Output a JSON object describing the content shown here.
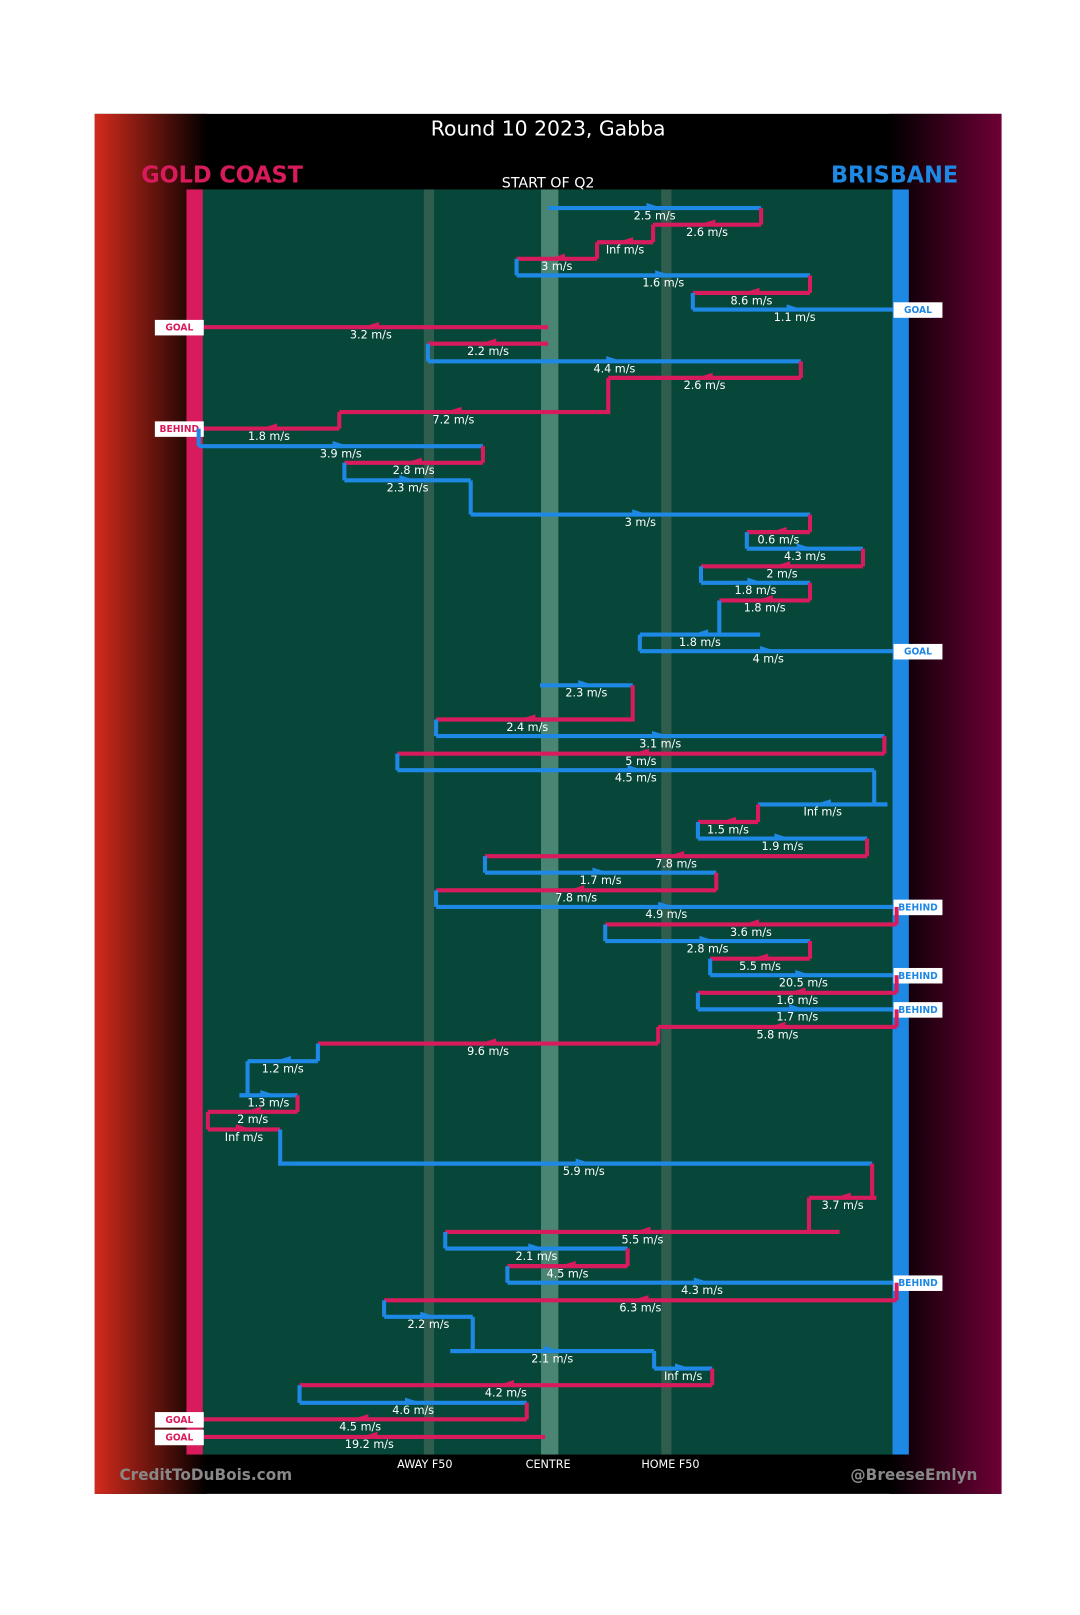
{
  "header": {
    "title": "Round 10 2023, Gabba",
    "subtitle": "START OF Q2",
    "left_team": "GOLD COAST",
    "right_team": "BRISBANE"
  },
  "footer": {
    "left": "CreditToDuBois.com",
    "right": "@BreeseEmlyn",
    "axis": [
      "AWAY F50",
      "CENTRE",
      "HOME F50"
    ]
  },
  "rows": [
    {
      "speed": "2.5 m/s",
      "team": "BRISBANE"
    },
    {
      "speed": "2.6 m/s",
      "team": "GOLD COAST"
    },
    {
      "speed": "Inf m/s",
      "team": "GOLD COAST"
    },
    {
      "speed": "3 m/s",
      "team": "GOLD COAST"
    },
    {
      "speed": "1.6 m/s",
      "team": "BRISBANE"
    },
    {
      "speed": "8.6 m/s",
      "team": "GOLD COAST"
    },
    {
      "speed": "1.1 m/s",
      "team": "BRISBANE",
      "outcome": "GOAL"
    },
    {
      "speed": "3.2 m/s",
      "team": "GOLD COAST",
      "outcome": "GOAL"
    },
    {
      "speed": "2.2 m/s",
      "team": "GOLD COAST"
    },
    {
      "speed": "4.4 m/s",
      "team": "BRISBANE"
    },
    {
      "speed": "2.6 m/s",
      "team": "GOLD COAST"
    },
    {
      "speed": "7.2 m/s",
      "team": "GOLD COAST"
    },
    {
      "speed": "1.8 m/s",
      "team": "GOLD COAST",
      "outcome": "BEHIND"
    },
    {
      "speed": "3.9 m/s",
      "team": "BRISBANE"
    },
    {
      "speed": "2.8 m/s",
      "team": "GOLD COAST"
    },
    {
      "speed": "2.3 m/s",
      "team": "BRISBANE"
    },
    {
      "speed": "3 m/s",
      "team": "BRISBANE"
    },
    {
      "speed": "0.6 m/s",
      "team": "GOLD COAST"
    },
    {
      "speed": "4.3 m/s",
      "team": "BRISBANE"
    },
    {
      "speed": "2 m/s",
      "team": "GOLD COAST"
    },
    {
      "speed": "1.8 m/s",
      "team": "BRISBANE"
    },
    {
      "speed": "1.8 m/s",
      "team": "GOLD COAST"
    },
    {
      "speed": "1.8 m/s",
      "team": "BRISBANE"
    },
    {
      "speed": "4 m/s",
      "team": "BRISBANE",
      "outcome": "GOAL"
    },
    {
      "speed": "2.3 m/s",
      "team": "BRISBANE"
    },
    {
      "speed": "2.4 m/s",
      "team": "GOLD COAST"
    },
    {
      "speed": "3.1 m/s",
      "team": "BRISBANE"
    },
    {
      "speed": "5 m/s",
      "team": "GOLD COAST"
    },
    {
      "speed": "4.5 m/s",
      "team": "BRISBANE"
    },
    {
      "speed": "Inf m/s",
      "team": "BRISBANE"
    },
    {
      "speed": "1.5 m/s",
      "team": "GOLD COAST"
    },
    {
      "speed": "1.9 m/s",
      "team": "BRISBANE"
    },
    {
      "speed": "7.8 m/s",
      "team": "GOLD COAST"
    },
    {
      "speed": "1.7 m/s",
      "team": "BRISBANE"
    },
    {
      "speed": "7.8 m/s",
      "team": "GOLD COAST"
    },
    {
      "speed": "4.9 m/s",
      "team": "BRISBANE",
      "outcome": "BEHIND"
    },
    {
      "speed": "3.6 m/s",
      "team": "GOLD COAST"
    },
    {
      "speed": "2.8 m/s",
      "team": "BRISBANE"
    },
    {
      "speed": "5.5 m/s",
      "team": "GOLD COAST"
    },
    {
      "speed": "20.5 m/s",
      "team": "BRISBANE",
      "outcome": "BEHIND"
    },
    {
      "speed": "1.6 m/s",
      "team": "GOLD COAST"
    },
    {
      "speed": "1.7 m/s",
      "team": "BRISBANE",
      "outcome": "BEHIND"
    },
    {
      "speed": "5.8 m/s",
      "team": "GOLD COAST"
    },
    {
      "speed": "9.6 m/s",
      "team": "GOLD COAST"
    },
    {
      "speed": "1.2 m/s",
      "team": "BRISBANE"
    },
    {
      "speed": "1.3 m/s",
      "team": "BRISBANE"
    },
    {
      "speed": "2 m/s",
      "team": "GOLD COAST"
    },
    {
      "speed": "Inf m/s",
      "team": "GOLD COAST"
    },
    {
      "speed": "5.9 m/s",
      "team": "BRISBANE"
    },
    {
      "speed": "3.7 m/s",
      "team": "GOLD COAST"
    },
    {
      "speed": "5.5 m/s",
      "team": "GOLD COAST"
    },
    {
      "speed": "2.1 m/s",
      "team": "BRISBANE"
    },
    {
      "speed": "4.5 m/s",
      "team": "GOLD COAST"
    },
    {
      "speed": "4.3 m/s",
      "team": "BRISBANE",
      "outcome": "BEHIND"
    },
    {
      "speed": "6.3 m/s",
      "team": "GOLD COAST"
    },
    {
      "speed": "2.2 m/s",
      "team": "BRISBANE"
    },
    {
      "speed": "2.1 m/s",
      "team": "BRISBANE"
    },
    {
      "speed": "Inf m/s",
      "team": "BRISBANE"
    },
    {
      "speed": "4.2 m/s",
      "team": "GOLD COAST"
    },
    {
      "speed": "4.6 m/s",
      "team": "BRISBANE"
    },
    {
      "speed": "4.5 m/s",
      "team": "GOLD COAST",
      "outcome": "GOAL"
    },
    {
      "speed": "19.2 m/s",
      "team": "GOLD COAST",
      "outcome": "GOAL"
    }
  ]
}
